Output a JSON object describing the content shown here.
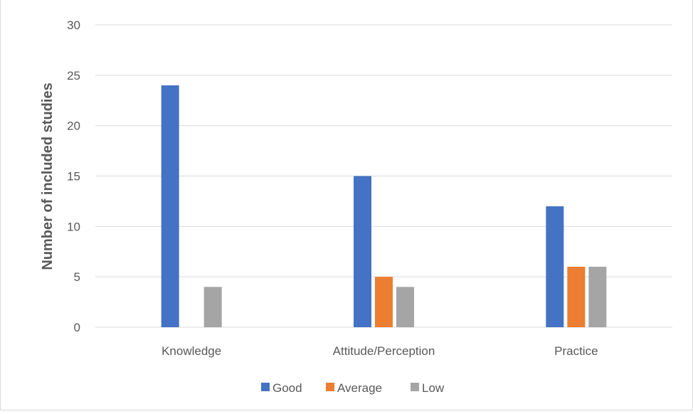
{
  "chart_data": {
    "type": "bar",
    "categories": [
      "Knowledge",
      "Attitude/Perception",
      "Practice"
    ],
    "series": [
      {
        "name": "Good",
        "values": [
          24,
          15,
          12
        ]
      },
      {
        "name": "Average",
        "values": [
          0,
          5,
          6
        ]
      },
      {
        "name": "Low",
        "values": [
          4,
          4,
          6
        ]
      }
    ],
    "ylabel": "Number of included studies",
    "xlabel": "",
    "ylim": [
      0,
      30
    ],
    "yticks": [
      0,
      5,
      10,
      15,
      20,
      25,
      30
    ],
    "grid": true,
    "legend_position": "bottom-center",
    "colors": {
      "Good": "#4472c4",
      "Average": "#ed7d31",
      "Low": "#a5a5a5"
    },
    "gridline_color": "#d9d9d9",
    "text_color": "#595959"
  }
}
